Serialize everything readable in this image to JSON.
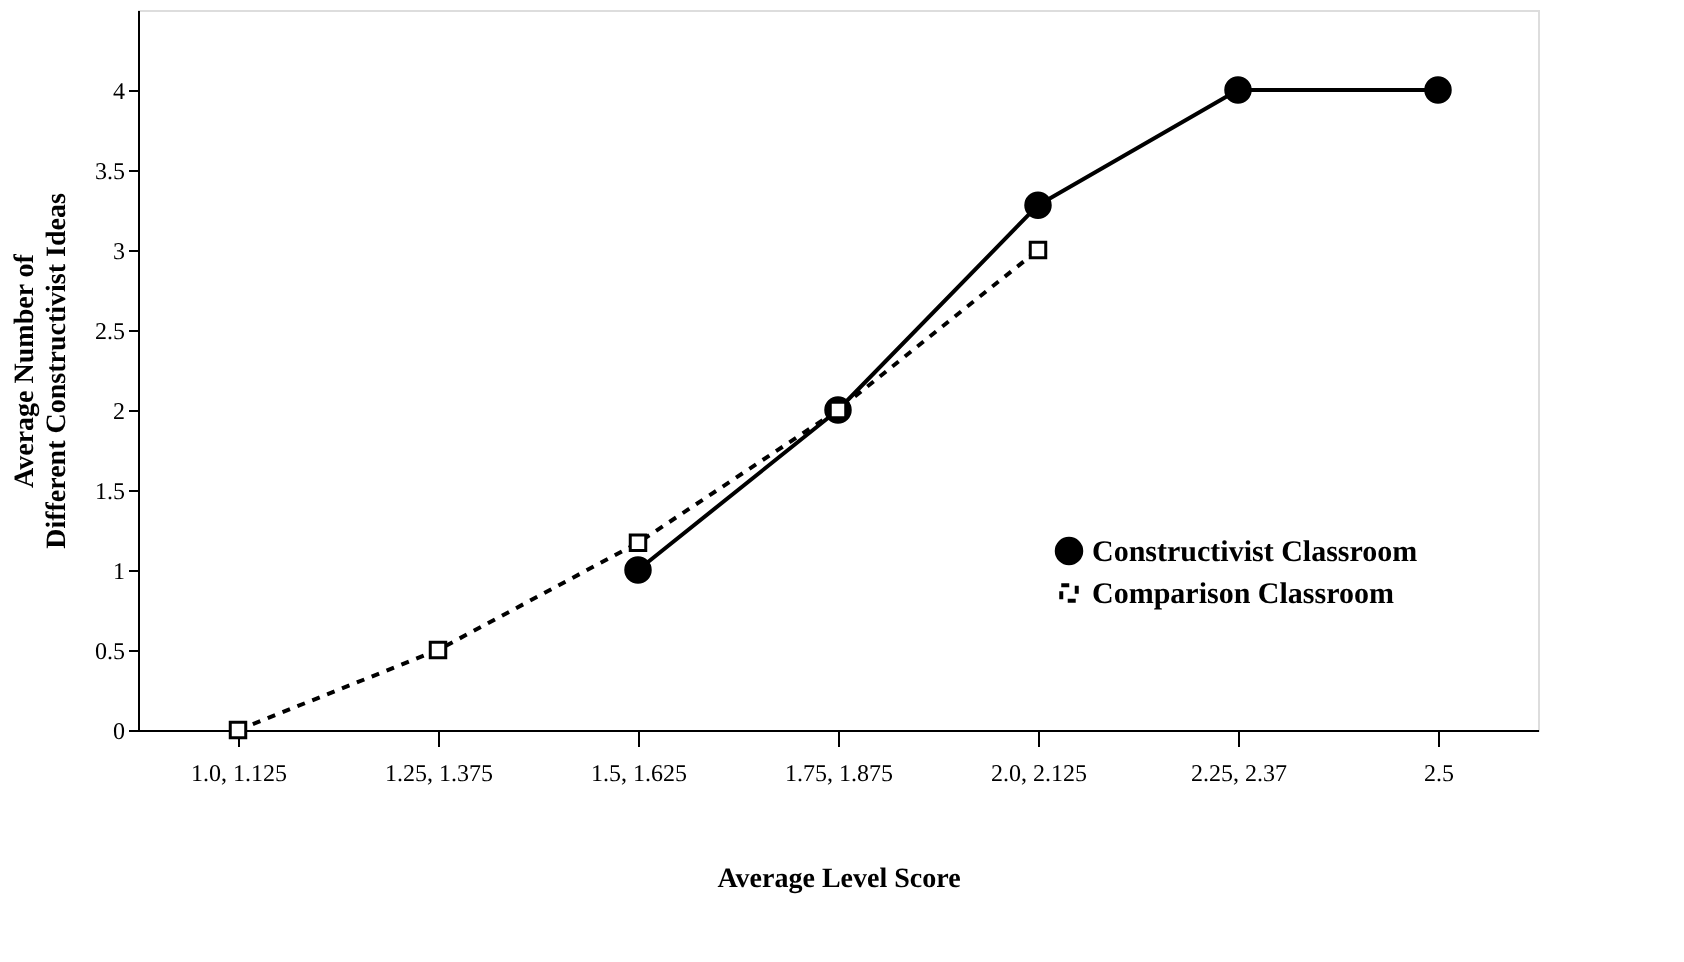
{
  "chart_data": {
    "type": "line",
    "xlabel": "Average Level Score",
    "ylabel": "Average Number of\nDifferent Constructivist Ideas",
    "categories": [
      "1.0, 1.125",
      "1.25, 1.375",
      "1.5, 1.625",
      "1.75, 1.875",
      "2.0, 2.125",
      "2.25, 2.37",
      "2.5"
    ],
    "series": [
      {
        "name": "Constructivist Classroom",
        "color": "#000000",
        "marker": "circle",
        "line_style": "solid",
        "values": [
          null,
          null,
          1,
          2,
          3.28,
          4,
          4
        ]
      },
      {
        "name": "Comparison Classroom",
        "color": "#000000",
        "marker": "square",
        "line_style": "dashed",
        "values": [
          0,
          0.5,
          1.17,
          2,
          3,
          null,
          null
        ]
      }
    ],
    "ylim": [
      0,
      4.5
    ],
    "yticks": [
      0,
      0.5,
      1,
      1.5,
      2,
      2.5,
      3,
      3.5,
      4
    ],
    "grid": false,
    "legend": "bottom right"
  }
}
